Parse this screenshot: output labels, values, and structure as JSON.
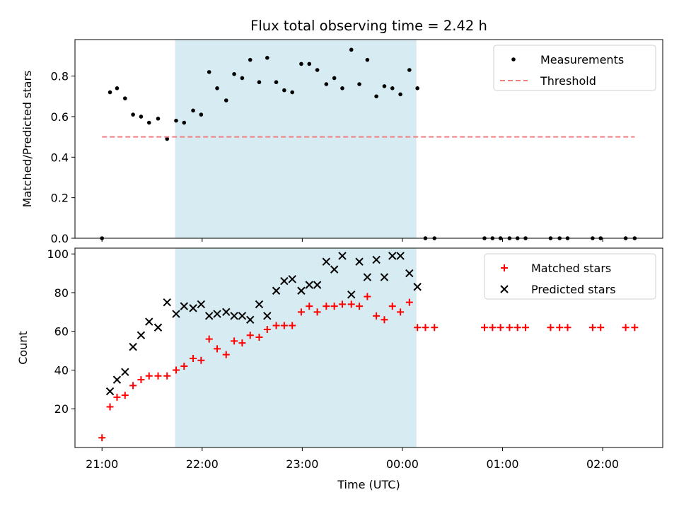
{
  "chart_data": [
    {
      "type": "scatter",
      "title": "Flux total observing time = 2.42 h",
      "xlabel": "",
      "ylabel": "Matched/Predicted stars",
      "ylim": [
        0,
        0.98
      ],
      "yticks": [
        "0.0",
        "0.2",
        "0.4",
        "0.6",
        "0.8"
      ],
      "ytick_values": [
        0,
        0.2,
        0.4,
        0.6,
        0.8
      ],
      "xlim_hours": [
        -0.27,
        5.6
      ],
      "shaded_span_hours": [
        0.73,
        3.14
      ],
      "legend_position": "upper right",
      "series": [
        {
          "name": "Measurements",
          "marker": "dot",
          "color": "#000000",
          "points": [
            [
              0.0,
              0.0
            ],
            [
              0.08,
              0.72
            ],
            [
              0.15,
              0.74
            ],
            [
              0.23,
              0.69
            ],
            [
              0.31,
              0.61
            ],
            [
              0.39,
              0.6
            ],
            [
              0.47,
              0.57
            ],
            [
              0.56,
              0.59
            ],
            [
              0.65,
              0.49
            ],
            [
              0.74,
              0.58
            ],
            [
              0.82,
              0.57
            ],
            [
              0.91,
              0.63
            ],
            [
              0.99,
              0.61
            ],
            [
              1.07,
              0.82
            ],
            [
              1.15,
              0.74
            ],
            [
              1.24,
              0.68
            ],
            [
              1.32,
              0.81
            ],
            [
              1.4,
              0.79
            ],
            [
              1.48,
              0.88
            ],
            [
              1.57,
              0.77
            ],
            [
              1.65,
              0.89
            ],
            [
              1.74,
              0.77
            ],
            [
              1.82,
              0.73
            ],
            [
              1.9,
              0.72
            ],
            [
              1.99,
              0.86
            ],
            [
              2.07,
              0.86
            ],
            [
              2.15,
              0.83
            ],
            [
              2.24,
              0.76
            ],
            [
              2.32,
              0.79
            ],
            [
              2.4,
              0.74
            ],
            [
              2.49,
              0.93
            ],
            [
              2.57,
              0.76
            ],
            [
              2.65,
              0.88
            ],
            [
              2.74,
              0.7
            ],
            [
              2.82,
              0.75
            ],
            [
              2.9,
              0.74
            ],
            [
              2.98,
              0.71
            ],
            [
              3.07,
              0.83
            ],
            [
              3.15,
              0.74
            ],
            [
              3.23,
              0.0
            ],
            [
              3.32,
              0.0
            ],
            [
              3.82,
              0.0
            ],
            [
              3.9,
              0.0
            ],
            [
              3.98,
              0.0
            ],
            [
              4.07,
              0.0
            ],
            [
              4.15,
              0.0
            ],
            [
              4.23,
              0.0
            ],
            [
              4.48,
              0.0
            ],
            [
              4.57,
              0.0
            ],
            [
              4.65,
              0.0
            ],
            [
              4.9,
              0.0
            ],
            [
              4.98,
              0.0
            ],
            [
              5.23,
              0.0
            ],
            [
              5.32,
              0.0
            ]
          ]
        },
        {
          "name": "Threshold",
          "marker": "dashed-line",
          "color": "#f08080",
          "points": [
            [
              0.0,
              0.5
            ],
            [
              5.32,
              0.5
            ]
          ]
        }
      ]
    },
    {
      "type": "scatter",
      "title": "",
      "xlabel": "Time (UTC)",
      "ylabel": "Count",
      "ylim": [
        0,
        103
      ],
      "yticks": [
        "20",
        "40",
        "60",
        "80",
        "100"
      ],
      "ytick_values": [
        20,
        40,
        60,
        80,
        100
      ],
      "xlim_hours": [
        -0.27,
        5.6
      ],
      "xticks": [
        "21:00",
        "22:00",
        "23:00",
        "00:00",
        "01:00",
        "02:00"
      ],
      "xtick_hours": [
        0,
        1,
        2,
        3,
        4,
        5
      ],
      "shaded_span_hours": [
        0.73,
        3.14
      ],
      "legend_position": "upper right",
      "series": [
        {
          "name": "Matched stars",
          "marker": "plus",
          "color": "#ff0000",
          "points": [
            [
              0.0,
              5
            ],
            [
              0.08,
              21
            ],
            [
              0.15,
              26
            ],
            [
              0.23,
              27
            ],
            [
              0.31,
              32
            ],
            [
              0.39,
              35
            ],
            [
              0.47,
              37
            ],
            [
              0.56,
              37
            ],
            [
              0.65,
              37
            ],
            [
              0.74,
              40
            ],
            [
              0.82,
              42
            ],
            [
              0.91,
              46
            ],
            [
              0.99,
              45
            ],
            [
              1.07,
              56
            ],
            [
              1.15,
              51
            ],
            [
              1.24,
              48
            ],
            [
              1.32,
              55
            ],
            [
              1.4,
              54
            ],
            [
              1.48,
              58
            ],
            [
              1.57,
              57
            ],
            [
              1.65,
              61
            ],
            [
              1.74,
              63
            ],
            [
              1.82,
              63
            ],
            [
              1.9,
              63
            ],
            [
              1.99,
              70
            ],
            [
              2.07,
              73
            ],
            [
              2.15,
              70
            ],
            [
              2.24,
              73
            ],
            [
              2.32,
              73
            ],
            [
              2.4,
              74
            ],
            [
              2.49,
              74
            ],
            [
              2.57,
              73
            ],
            [
              2.65,
              78
            ],
            [
              2.74,
              68
            ],
            [
              2.82,
              66
            ],
            [
              2.9,
              73
            ],
            [
              2.98,
              70
            ],
            [
              3.07,
              75
            ],
            [
              3.15,
              62
            ],
            [
              3.23,
              62
            ],
            [
              3.32,
              62
            ],
            [
              3.82,
              62
            ],
            [
              3.9,
              62
            ],
            [
              3.98,
              62
            ],
            [
              4.07,
              62
            ],
            [
              4.15,
              62
            ],
            [
              4.23,
              62
            ],
            [
              4.48,
              62
            ],
            [
              4.57,
              62
            ],
            [
              4.65,
              62
            ],
            [
              4.9,
              62
            ],
            [
              4.98,
              62
            ],
            [
              5.23,
              62
            ],
            [
              5.32,
              62
            ]
          ]
        },
        {
          "name": "Predicted stars",
          "marker": "x",
          "color": "#000000",
          "points": [
            [
              0.08,
              29
            ],
            [
              0.15,
              35
            ],
            [
              0.23,
              39
            ],
            [
              0.31,
              52
            ],
            [
              0.39,
              58
            ],
            [
              0.47,
              65
            ],
            [
              0.56,
              62
            ],
            [
              0.65,
              75
            ],
            [
              0.74,
              69
            ],
            [
              0.82,
              73
            ],
            [
              0.91,
              72
            ],
            [
              0.99,
              74
            ],
            [
              1.07,
              68
            ],
            [
              1.15,
              69
            ],
            [
              1.24,
              70
            ],
            [
              1.32,
              68
            ],
            [
              1.4,
              68
            ],
            [
              1.48,
              66
            ],
            [
              1.57,
              74
            ],
            [
              1.65,
              68
            ],
            [
              1.74,
              81
            ],
            [
              1.82,
              86
            ],
            [
              1.9,
              87
            ],
            [
              1.99,
              81
            ],
            [
              2.07,
              84
            ],
            [
              2.15,
              84
            ],
            [
              2.24,
              96
            ],
            [
              2.32,
              92
            ],
            [
              2.4,
              99
            ],
            [
              2.49,
              79
            ],
            [
              2.57,
              96
            ],
            [
              2.65,
              88
            ],
            [
              2.74,
              97
            ],
            [
              2.82,
              88
            ],
            [
              2.9,
              99
            ],
            [
              2.98,
              99
            ],
            [
              3.07,
              90
            ],
            [
              3.15,
              83
            ]
          ]
        }
      ]
    }
  ]
}
